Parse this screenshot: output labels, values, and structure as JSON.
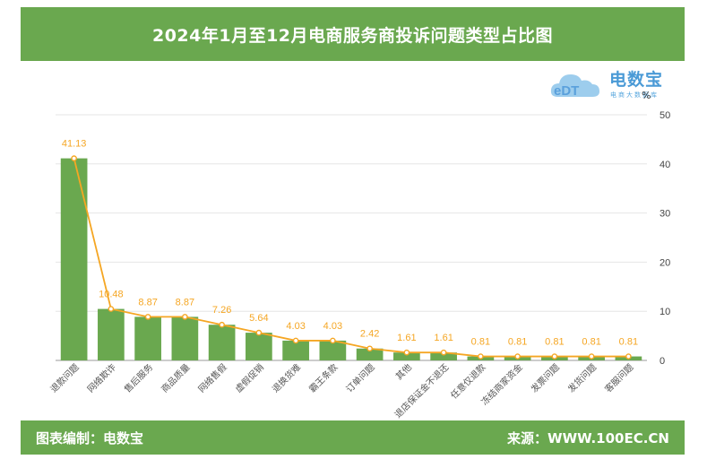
{
  "header": {
    "title": "2024年1月至12月电商服务商投诉问题类型占比图"
  },
  "footer": {
    "left": "图表编制：电数宝",
    "right": "来源：WWW.100EC.CN"
  },
  "logo": {
    "mark": "eDT",
    "name": "电数宝",
    "tagline": "电商大数据库",
    "icon": "cloud-logo-icon"
  },
  "colors": {
    "bar": "#6aa84f",
    "line": "#f5a623",
    "header": "#6aa84f"
  },
  "chart_data": {
    "type": "bar",
    "categories": [
      "退款问题",
      "网络欺诈",
      "售后服务",
      "商品质量",
      "网络售假",
      "虚假促销",
      "退换货难",
      "霸王条款",
      "订单问题",
      "其他",
      "退店保证金不退还",
      "任意仅退款",
      "冻结商家资金",
      "发票问题",
      "发货问题",
      "客服问题"
    ],
    "values": [
      41.13,
      10.48,
      8.87,
      8.87,
      7.26,
      5.64,
      4.03,
      4.03,
      2.42,
      1.61,
      1.61,
      0.81,
      0.81,
      0.81,
      0.81,
      0.81
    ],
    "labels": [
      "41.13",
      "10.48",
      "8.87",
      "8.87",
      "7.26",
      "5.64",
      "4.03",
      "4.03",
      "2.42",
      "1.61",
      "1.61",
      "0.81",
      "0.81",
      "0.81",
      "0.81",
      "0.81"
    ],
    "overlay_line": true,
    "ylim": [
      0,
      50
    ],
    "yticks": [
      "0",
      "10",
      "20",
      "30",
      "40",
      "50"
    ],
    "y_axis_side": "right",
    "unit": "%",
    "grid": true
  }
}
